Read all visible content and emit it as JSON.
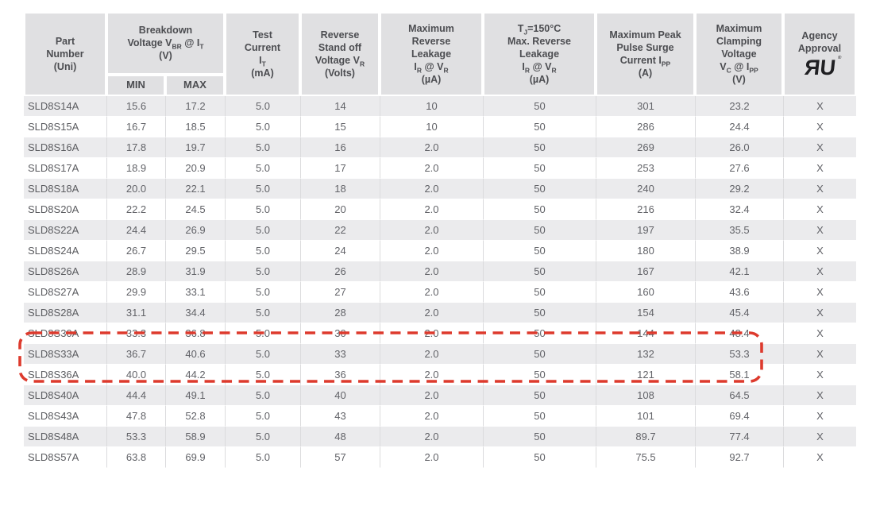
{
  "colors": {
    "header_bg": "#e0e0e2",
    "stripe_bg": "#ebebed",
    "header_text": "#4c4d51",
    "cell_text": "#626368",
    "grid_line": "#dbdbdd",
    "highlight_red": "#dd3a2d"
  },
  "table": {
    "columns": [
      {
        "id": "part-number",
        "width": 104,
        "lines": [
          "Part",
          "Number",
          "(Uni)"
        ]
      },
      {
        "id": "breakdown-voltage",
        "lines": [
          "Breakdown",
          "Voltage V~BR~ @ I~T~",
          "(V)"
        ],
        "subcolumns": [
          {
            "id": "vbr-min",
            "label": "MIN",
            "width": 74
          },
          {
            "id": "vbr-max",
            "label": "MAX",
            "width": 75
          }
        ]
      },
      {
        "id": "test-current",
        "width": 95,
        "lines": [
          "Test",
          "Current",
          "I~T~",
          "(mA)"
        ]
      },
      {
        "id": "reverse-standoff-voltage",
        "width": 100,
        "lines": [
          "Reverse",
          "Stand off",
          "Voltage V~R~",
          "(Volts)"
        ]
      },
      {
        "id": "max-reverse-leakage",
        "width": 130,
        "lines": [
          "Maximum",
          "Reverse",
          "Leakage",
          "I~R~ @ V~R~",
          "(µA)"
        ]
      },
      {
        "id": "tj150-max-reverse-leakage",
        "width": 142,
        "lines": [
          "T~J~=150°C",
          "Max. Reverse",
          "Leakage",
          "I~R~ @ V~R~",
          "(µA)"
        ]
      },
      {
        "id": "max-peak-pulse-surge-current",
        "width": 125,
        "lines": [
          "Maximum Peak",
          "Pulse Surge",
          "Current I~PP~",
          "(A)"
        ]
      },
      {
        "id": "max-clamping-voltage",
        "width": 111,
        "lines": [
          "Maximum",
          "Clamping",
          "Voltage",
          "V~C~ @ I~PP~",
          "(V)"
        ]
      },
      {
        "id": "agency-approval",
        "width": 92,
        "lines": [
          "Agency",
          "Approval"
        ],
        "logo": {
          "name": "ul-recognized-mark",
          "reversed_letter": "R",
          "letter": "U",
          "reg": "®"
        }
      }
    ],
    "rows": [
      [
        "SLD8S14A",
        "15.6",
        "17.2",
        "5.0",
        "14",
        "10",
        "50",
        "301",
        "23.2",
        "X"
      ],
      [
        "SLD8S15A",
        "16.7",
        "18.5",
        "5.0",
        "15",
        "10",
        "50",
        "286",
        "24.4",
        "X"
      ],
      [
        "SLD8S16A",
        "17.8",
        "19.7",
        "5.0",
        "16",
        "2.0",
        "50",
        "269",
        "26.0",
        "X"
      ],
      [
        "SLD8S17A",
        "18.9",
        "20.9",
        "5.0",
        "17",
        "2.0",
        "50",
        "253",
        "27.6",
        "X"
      ],
      [
        "SLD8S18A",
        "20.0",
        "22.1",
        "5.0",
        "18",
        "2.0",
        "50",
        "240",
        "29.2",
        "X"
      ],
      [
        "SLD8S20A",
        "22.2",
        "24.5",
        "5.0",
        "20",
        "2.0",
        "50",
        "216",
        "32.4",
        "X"
      ],
      [
        "SLD8S22A",
        "24.4",
        "26.9",
        "5.0",
        "22",
        "2.0",
        "50",
        "197",
        "35.5",
        "X"
      ],
      [
        "SLD8S24A",
        "26.7",
        "29.5",
        "5.0",
        "24",
        "2.0",
        "50",
        "180",
        "38.9",
        "X"
      ],
      [
        "SLD8S26A",
        "28.9",
        "31.9",
        "5.0",
        "26",
        "2.0",
        "50",
        "167",
        "42.1",
        "X"
      ],
      [
        "SLD8S27A",
        "29.9",
        "33.1",
        "5.0",
        "27",
        "2.0",
        "50",
        "160",
        "43.6",
        "X"
      ],
      [
        "SLD8S28A",
        "31.1",
        "34.4",
        "5.0",
        "28",
        "2.0",
        "50",
        "154",
        "45.4",
        "X"
      ],
      [
        "SLD8S30A",
        "33.3",
        "36.8",
        "5.0",
        "30",
        "2.0",
        "50",
        "144",
        "48.4",
        "X"
      ],
      [
        "SLD8S33A",
        "36.7",
        "40.6",
        "5.0",
        "33",
        "2.0",
        "50",
        "132",
        "53.3",
        "X"
      ],
      [
        "SLD8S36A",
        "40.0",
        "44.2",
        "5.0",
        "36",
        "2.0",
        "50",
        "121",
        "58.1",
        "X"
      ],
      [
        "SLD8S40A",
        "44.4",
        "49.1",
        "5.0",
        "40",
        "2.0",
        "50",
        "108",
        "64.5",
        "X"
      ],
      [
        "SLD8S43A",
        "47.8",
        "52.8",
        "5.0",
        "43",
        "2.0",
        "50",
        "101",
        "69.4",
        "X"
      ],
      [
        "SLD8S48A",
        "53.3",
        "58.9",
        "5.0",
        "48",
        "2.0",
        "50",
        "89.7",
        "77.4",
        "X"
      ],
      [
        "SLD8S57A",
        "63.8",
        "69.9",
        "5.0",
        "57",
        "2.0",
        "50",
        "75.5",
        "92.7",
        "X"
      ]
    ]
  },
  "highlight": {
    "rows": [
      "SLD8S30A",
      "SLD8S33A"
    ]
  }
}
